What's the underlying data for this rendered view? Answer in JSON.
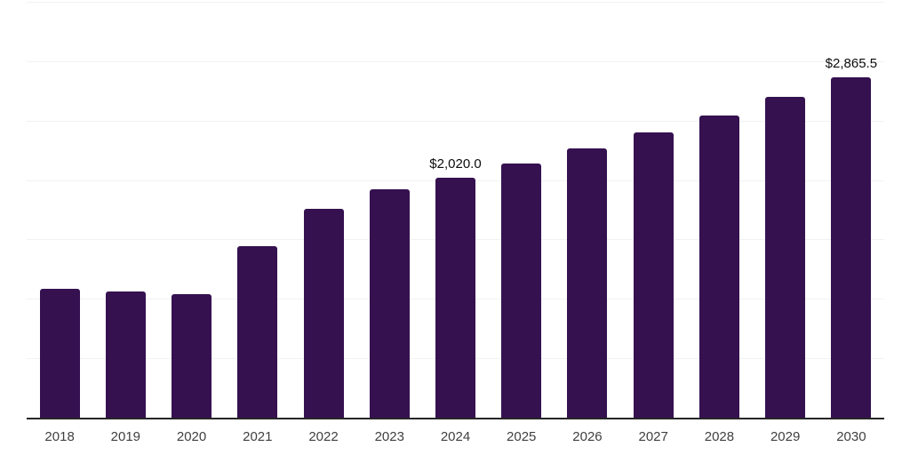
{
  "chart": {
    "background_color": "#ffffff",
    "bar_color": "#351150",
    "grid_color": "#f2f2f2",
    "axis_color": "#262626",
    "tick_label_color": "#404040",
    "data_label_color": "#0d0d0d"
  },
  "chart_data": {
    "type": "bar",
    "title": "",
    "xlabel": "",
    "ylabel": "",
    "categories": [
      "2018",
      "2019",
      "2020",
      "2021",
      "2022",
      "2023",
      "2024",
      "2025",
      "2026",
      "2027",
      "2028",
      "2029",
      "2030"
    ],
    "values": [
      1085,
      1065,
      1040,
      1445,
      1760,
      1925,
      2020.0,
      2140,
      2265,
      2400,
      2540,
      2700,
      2865.5
    ],
    "data_labels": {
      "2024": "$2,020.0",
      "2030": "$2,865.5"
    },
    "ylim": [
      0,
      3500
    ],
    "grid_interval": 500,
    "grid": "horizontal",
    "legend": "none",
    "y_axis_tick_labels_visible": false
  }
}
